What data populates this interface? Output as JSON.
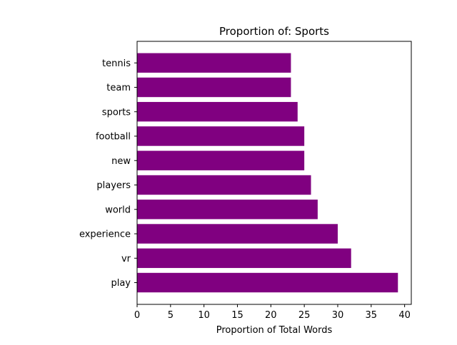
{
  "chart_data": {
    "type": "bar",
    "orientation": "horizontal",
    "title": "Proportion of: Sports",
    "xlabel": "Proportion of Total Words",
    "ylabel": "",
    "categories": [
      "play",
      "vr",
      "experience",
      "world",
      "players",
      "new",
      "football",
      "sports",
      "team",
      "tennis"
    ],
    "values": [
      39,
      32,
      30,
      27,
      26,
      25,
      25,
      24,
      23,
      23
    ],
    "xlim": [
      0,
      41
    ],
    "xticks": [
      0,
      5,
      10,
      15,
      20,
      25,
      30,
      35,
      40
    ],
    "grid": false,
    "legend": "none",
    "bar_color": "#800080"
  }
}
